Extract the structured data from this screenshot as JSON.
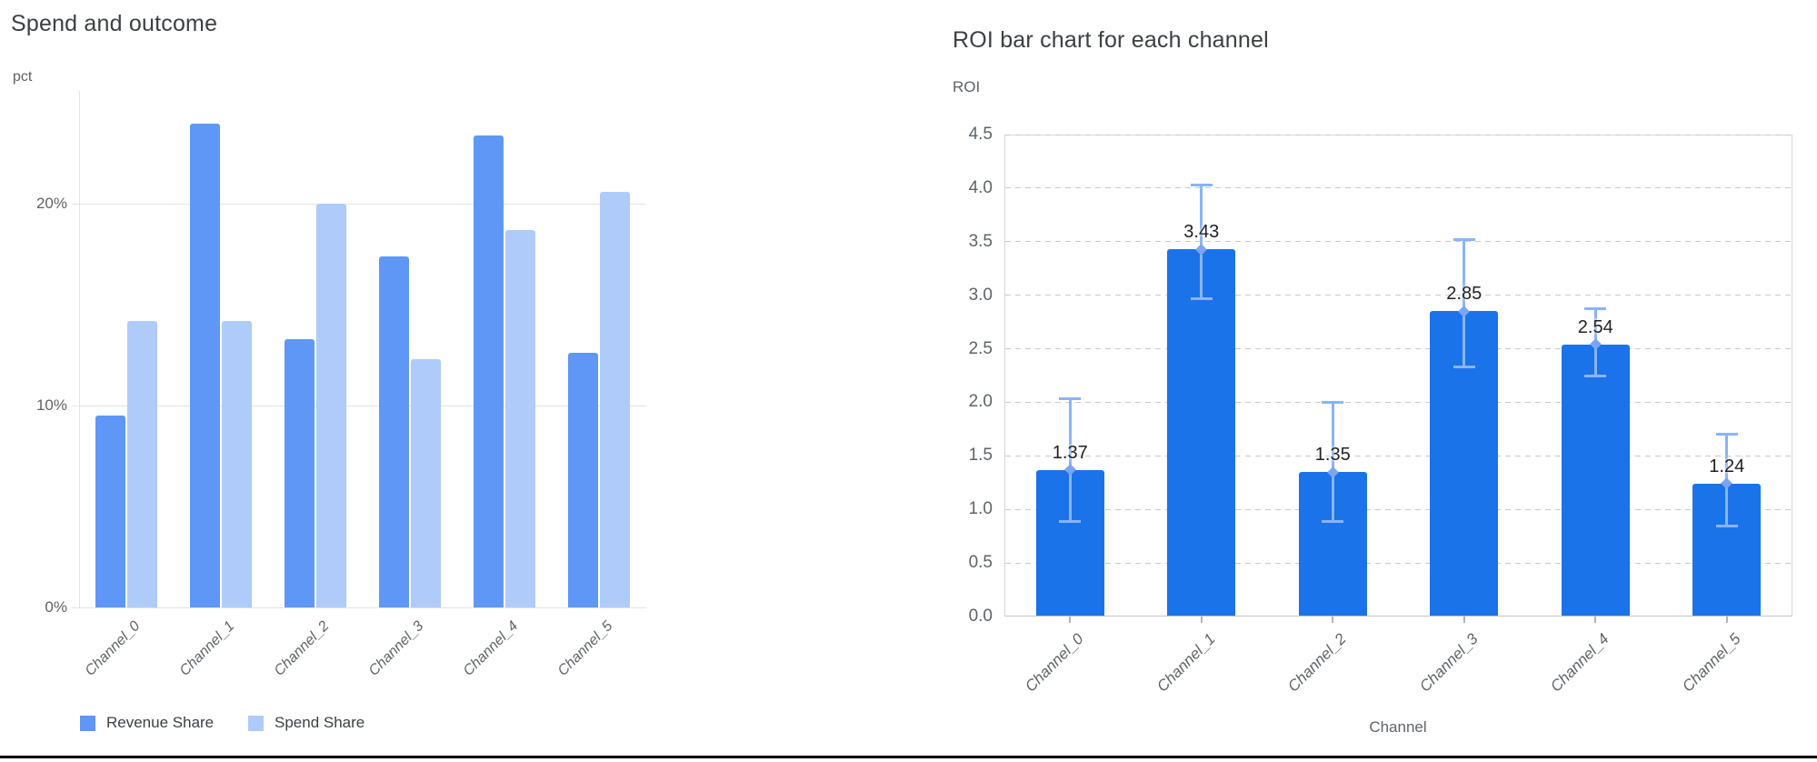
{
  "chart_data": [
    {
      "type": "bar",
      "title": "Spend and outcome",
      "ylabel": "pct",
      "xlabel": "",
      "categories": [
        "Channel_0",
        "Channel_1",
        "Channel_2",
        "Channel_3",
        "Channel_4",
        "Channel_5"
      ],
      "series": [
        {
          "name": "Revenue Share",
          "color": "#5e97f6",
          "values": [
            9.5,
            24.0,
            13.3,
            17.4,
            23.4,
            12.6
          ]
        },
        {
          "name": "Spend Share",
          "color": "#aecbfa",
          "values": [
            14.2,
            14.2,
            20.0,
            12.3,
            18.7,
            20.6
          ]
        }
      ],
      "ylim": [
        0,
        25.6
      ],
      "y_ticks": [
        {
          "value": 0,
          "label": "0%"
        },
        {
          "value": 10,
          "label": "10%"
        },
        {
          "value": 20,
          "label": "20%"
        }
      ],
      "grid": "solid",
      "legend_position": "bottom"
    },
    {
      "type": "bar",
      "title": "ROI bar chart for each channel",
      "ylabel": "ROI",
      "xlabel": "Channel",
      "categories": [
        "Channel_0",
        "Channel_1",
        "Channel_2",
        "Channel_3",
        "Channel_4",
        "Channel_5"
      ],
      "series": [
        {
          "name": "ROI",
          "color": "#1a73e8",
          "values": [
            1.37,
            3.43,
            1.35,
            2.85,
            2.54,
            1.24
          ]
        }
      ],
      "value_labels": [
        "1.37",
        "3.43",
        "1.35",
        "2.85",
        "2.54",
        "1.24"
      ],
      "error_bars": {
        "color": "#8ab4f8",
        "low": [
          0.88,
          2.96,
          0.88,
          2.33,
          2.24,
          0.84
        ],
        "high": [
          2.04,
          4.03,
          2.0,
          3.52,
          2.88,
          1.71
        ]
      },
      "ylim": [
        0,
        4.5
      ],
      "y_tick_step": 0.5,
      "grid": "dashed",
      "legend_position": "none"
    }
  ]
}
